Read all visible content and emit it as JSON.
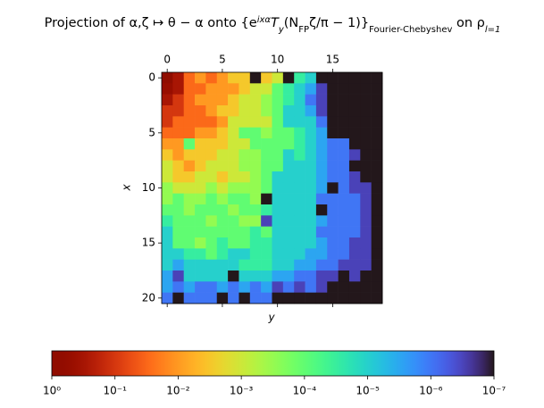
{
  "chart_data": {
    "type": "heatmap",
    "title": [
      "Projection of α,ζ ↦ θ − α onto {e",
      "ixα",
      "T",
      "y",
      "(N",
      "FP",
      "ζ/π − 1)}",
      "Fourier-Chebyshev",
      " on ρ",
      "l=1"
    ],
    "xlabel": "y",
    "ylabel": "x",
    "xlim": [
      -0.5,
      19.5
    ],
    "ylim": [
      20.5,
      -0.5
    ],
    "xticks": [
      0,
      5,
      10,
      15
    ],
    "yticks": [
      0,
      5,
      10,
      15,
      20
    ],
    "colormap": "turbo",
    "colorbar": {
      "log": true,
      "lim": [
        1,
        1e-07
      ],
      "ticks": [
        {
          "value": 1,
          "label": "10⁰"
        },
        {
          "value": 0.1,
          "label": "10⁻¹"
        },
        {
          "value": 0.01,
          "label": "10⁻²"
        },
        {
          "value": 0.001,
          "label": "10⁻³"
        },
        {
          "value": 0.0001,
          "label": "10⁻⁴"
        },
        {
          "value": 1e-05,
          "label": "10⁻⁵"
        },
        {
          "value": 1e-06,
          "label": "10⁻⁶"
        },
        {
          "value": 1e-07,
          "label": "10⁻⁷"
        }
      ]
    },
    "z": [
      [
        1,
        0.3,
        0.03,
        0.01,
        0.03,
        0.01,
        0.003,
        0.003,
        1e-07,
        0.003,
        0.001,
        1e-07,
        3e-05,
        1e-05,
        1e-07,
        1e-07,
        1e-07,
        1e-07,
        1e-07,
        1e-07
      ],
      [
        0.5,
        0.3,
        0.03,
        0.03,
        0.01,
        0.01,
        0.01,
        0.003,
        0.001,
        0.001,
        0.0001,
        3e-05,
        1e-05,
        3e-06,
        3e-07,
        1e-07,
        1e-07,
        1e-07,
        1e-07,
        1e-07
      ],
      [
        0.3,
        0.1,
        0.03,
        0.01,
        0.01,
        0.01,
        0.003,
        0.001,
        0.001,
        0.0003,
        0.0001,
        3e-05,
        1e-05,
        1e-06,
        3e-07,
        1e-07,
        1e-07,
        1e-07,
        1e-07,
        1e-07
      ],
      [
        0.1,
        0.1,
        0.03,
        0.03,
        0.01,
        0.003,
        0.003,
        0.001,
        0.001,
        0.0003,
        0.0001,
        1e-05,
        1e-05,
        3e-06,
        3e-07,
        1e-07,
        1e-07,
        1e-07,
        1e-07,
        1e-07
      ],
      [
        0.1,
        0.03,
        0.03,
        0.03,
        0.03,
        0.01,
        0.001,
        0.001,
        0.001,
        0.001,
        0.0001,
        1e-05,
        1e-05,
        1e-05,
        1e-06,
        1e-07,
        1e-07,
        1e-07,
        1e-07,
        1e-07
      ],
      [
        0.03,
        0.03,
        0.03,
        0.01,
        0.01,
        0.003,
        0.001,
        0.0001,
        0.0001,
        0.0003,
        0.0001,
        0.0001,
        3e-05,
        1e-05,
        3e-06,
        1e-07,
        1e-07,
        1e-07,
        1e-07,
        1e-07
      ],
      [
        0.01,
        0.01,
        0.0001,
        0.003,
        0.003,
        0.003,
        0.001,
        0.001,
        0.0001,
        0.0001,
        0.0001,
        0.0001,
        3e-05,
        1e-05,
        3e-06,
        1e-06,
        1e-06,
        1e-07,
        1e-07,
        1e-07
      ],
      [
        0.003,
        0.01,
        0.003,
        0.003,
        0.003,
        0.001,
        0.001,
        0.0003,
        0.0003,
        0.0001,
        0.0001,
        1e-05,
        3e-05,
        1e-05,
        3e-06,
        1e-06,
        1e-06,
        3e-07,
        1e-07,
        1e-07
      ],
      [
        0.001,
        0.003,
        0.01,
        0.003,
        0.001,
        0.001,
        0.001,
        0.0003,
        0.0003,
        0.0001,
        0.0001,
        1e-05,
        1e-05,
        1e-05,
        3e-06,
        1e-06,
        1e-06,
        1e-07,
        1e-07,
        1e-07
      ],
      [
        0.001,
        0.003,
        0.003,
        0.001,
        0.001,
        0.003,
        0.001,
        0.001,
        0.0003,
        0.0001,
        1e-05,
        1e-05,
        1e-05,
        1e-05,
        3e-06,
        1e-06,
        1e-06,
        3e-07,
        1e-07,
        1e-07
      ],
      [
        0.0003,
        0.001,
        0.001,
        0.001,
        0.0003,
        0.001,
        0.0003,
        0.0003,
        0.0003,
        0.0001,
        1e-05,
        1e-05,
        1e-05,
        1e-05,
        3e-06,
        1e-07,
        1e-06,
        3e-07,
        3e-07,
        1e-07
      ],
      [
        0.0003,
        0.0001,
        0.0003,
        0.0003,
        0.0001,
        0.0003,
        0.0001,
        0.0001,
        0.0003,
        1e-07,
        1e-05,
        1e-05,
        1e-05,
        1e-05,
        1e-06,
        1e-06,
        1e-06,
        1e-06,
        3e-07,
        1e-07
      ],
      [
        0.0001,
        0.0001,
        0.0003,
        0.0001,
        0.0001,
        0.0001,
        0.0003,
        0.0001,
        0.0001,
        3e-05,
        1e-05,
        1e-05,
        1e-05,
        1e-05,
        1e-07,
        1e-06,
        1e-06,
        1e-06,
        3e-07,
        1e-07
      ],
      [
        3e-05,
        0.0001,
        0.0001,
        0.0001,
        0.0003,
        0.0001,
        0.0001,
        0.0003,
        0.0003,
        3e-07,
        1e-05,
        1e-05,
        1e-05,
        1e-05,
        3e-06,
        1e-06,
        1e-06,
        1e-06,
        3e-07,
        1e-07
      ],
      [
        1e-05,
        0.0001,
        0.0001,
        0.0001,
        0.0001,
        0.0001,
        0.0001,
        0.0001,
        3e-05,
        0.0001,
        1e-05,
        1e-05,
        1e-05,
        1e-05,
        1e-06,
        1e-06,
        1e-06,
        1e-06,
        3e-07,
        1e-07
      ],
      [
        1e-05,
        0.0001,
        0.0001,
        0.0003,
        0.0001,
        3e-05,
        0.0001,
        0.0001,
        3e-05,
        3e-05,
        1e-05,
        1e-05,
        1e-05,
        1e-05,
        3e-06,
        1e-06,
        1e-06,
        3e-07,
        3e-07,
        1e-07
      ],
      [
        1e-05,
        1e-05,
        3e-05,
        3e-05,
        0.0001,
        3e-05,
        1e-05,
        1e-05,
        3e-05,
        3e-05,
        1e-05,
        1e-05,
        1e-05,
        3e-06,
        3e-06,
        1e-06,
        1e-06,
        3e-07,
        3e-07,
        1e-07
      ],
      [
        1e-05,
        3e-06,
        1e-05,
        1e-05,
        1e-05,
        1e-05,
        1e-05,
        3e-05,
        3e-05,
        3e-05,
        1e-05,
        1e-05,
        3e-06,
        3e-06,
        1e-06,
        1e-06,
        3e-07,
        3e-07,
        3e-07,
        1e-07
      ],
      [
        3e-06,
        3e-07,
        1e-05,
        1e-05,
        1e-05,
        1e-05,
        1e-07,
        1e-05,
        1e-05,
        1e-05,
        3e-06,
        3e-06,
        1e-06,
        1e-06,
        3e-07,
        3e-07,
        1e-07,
        3e-07,
        1e-07,
        1e-07
      ],
      [
        3e-06,
        1e-06,
        3e-06,
        1e-06,
        1e-06,
        3e-06,
        1e-06,
        3e-06,
        1e-06,
        3e-06,
        3e-07,
        1e-06,
        3e-07,
        1e-06,
        3e-07,
        1e-07,
        1e-07,
        1e-07,
        1e-07,
        1e-07
      ],
      [
        1e-06,
        1e-07,
        1e-06,
        1e-06,
        1e-06,
        1e-07,
        1e-06,
        1e-07,
        1e-06,
        1e-06,
        1e-07,
        1e-07,
        1e-07,
        1e-07,
        1e-07,
        1e-07,
        1e-07,
        1e-07,
        1e-07,
        1e-07
      ]
    ]
  }
}
